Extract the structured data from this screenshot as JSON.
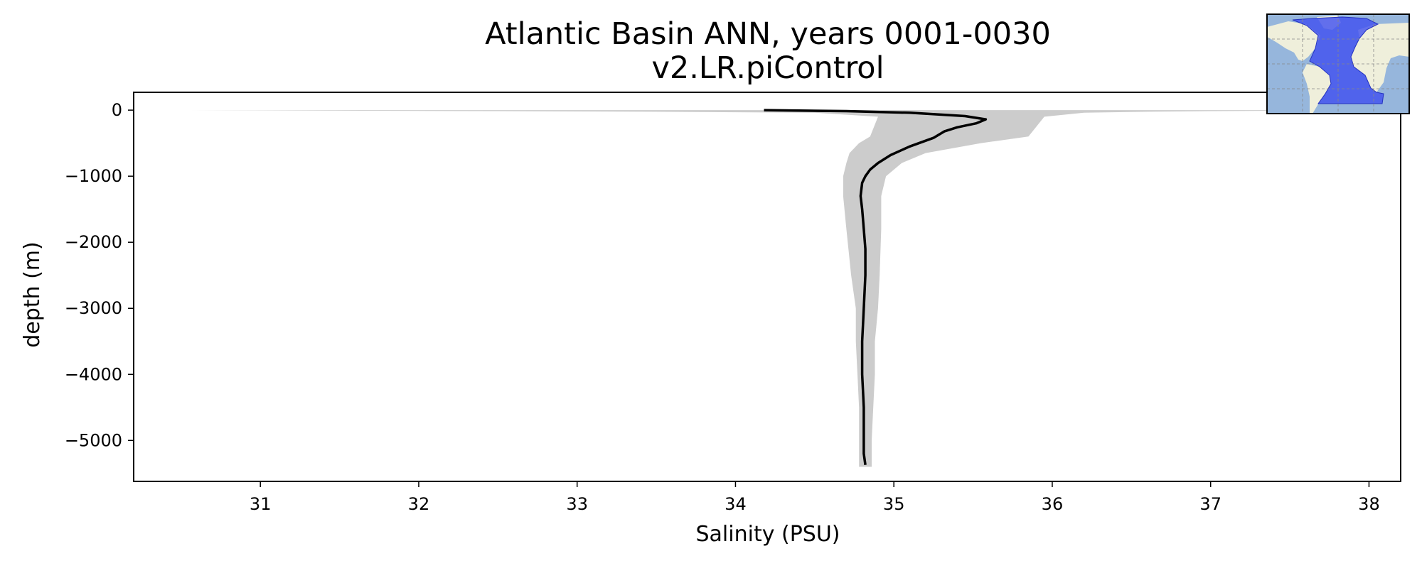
{
  "chart_data": {
    "type": "line",
    "title": "Atlantic Basin ANN, years 0001-0030",
    "subtitle": "v2.LR.piControl",
    "xlabel": "Salinity (PSU)",
    "ylabel": "depth (m)",
    "xlim": [
      30.2,
      38.2
    ],
    "ylim": [
      -5620,
      270
    ],
    "xticks": [
      31,
      32,
      33,
      34,
      35,
      36,
      37,
      38
    ],
    "yticks": [
      0,
      -1000,
      -2000,
      -3000,
      -4000,
      -5000
    ],
    "ytick_labels": [
      "0",
      "−1000",
      "−2000",
      "−3000",
      "−4000",
      "−5000"
    ],
    "grid": false,
    "colors": {
      "mean_line": "#000000",
      "range_fill": "#cccccc",
      "inset_ocean": "#96b6dc",
      "inset_land": "#efefdb",
      "inset_region": "#3f4ff0"
    },
    "series": [
      {
        "role": "mean",
        "x": [
          34.18,
          34.35,
          34.7,
          35.1,
          35.45,
          35.58,
          35.52,
          35.4,
          35.32,
          35.25,
          35.1,
          34.98,
          34.9,
          34.85,
          34.82,
          34.8,
          34.79,
          34.8,
          34.81,
          34.82,
          34.82,
          34.81,
          34.8,
          34.8,
          34.81,
          34.81,
          34.81,
          34.82
        ],
        "y": [
          0,
          -5,
          -15,
          -40,
          -90,
          -140,
          -200,
          -260,
          -320,
          -420,
          -550,
          -680,
          -800,
          -900,
          -1000,
          -1100,
          -1300,
          -1500,
          -1800,
          -2100,
          -2500,
          -3000,
          -3500,
          -4000,
          -4500,
          -5000,
          -5200,
          -5370
        ]
      },
      {
        "role": "range",
        "x_min": [
          30.55,
          31.5,
          32.5,
          33.5,
          34.5,
          34.9,
          34.85,
          34.78,
          34.72,
          34.7,
          34.68,
          34.68,
          34.7,
          34.73,
          34.76,
          34.76,
          34.77,
          34.78,
          34.78,
          34.78
        ],
        "x_max": [
          38.2,
          37.6,
          37.0,
          36.6,
          36.2,
          35.95,
          35.85,
          35.55,
          35.2,
          35.05,
          34.95,
          34.92,
          34.92,
          34.91,
          34.9,
          34.88,
          34.88,
          34.87,
          34.86,
          34.86
        ],
        "y": [
          0,
          -8,
          -15,
          -25,
          -40,
          -100,
          -400,
          -500,
          -650,
          -800,
          -1000,
          -1300,
          -1800,
          -2500,
          -3000,
          -3500,
          -4000,
          -4500,
          -5000,
          -5400
        ]
      }
    ]
  }
}
